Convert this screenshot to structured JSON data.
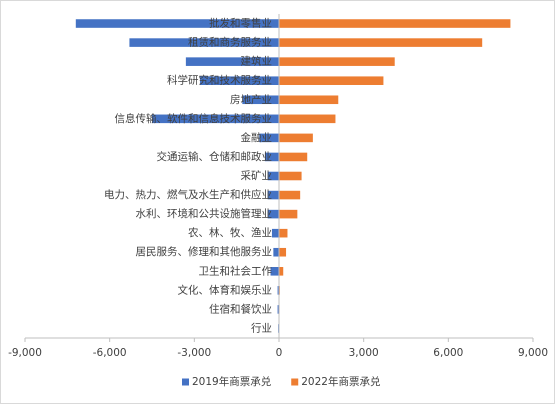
{
  "chart_data": {
    "type": "diverging-bar",
    "categories": [
      "批发和零售业",
      "租赁和商务服务业",
      "建筑业",
      "科学研究和技术服务业",
      "房地产业",
      "信息传输、软件和信息技术服务业",
      "金融业",
      "交通运输、仓储和邮政业",
      "采矿业",
      "电力、热力、燃气及水生产和供应业",
      "水利、环境和公共设施管理业",
      "农、林、牧、渔业",
      "居民服务、修理和其他服务业",
      "卫生和社会工作",
      "文化、体育和娱乐业",
      "住宿和餐饮业",
      "行业"
    ],
    "series": [
      {
        "name": "2019年商票承兑",
        "color": "#4472c4",
        "values": [
          -7200,
          -5300,
          -3300,
          -2800,
          -1300,
          -4500,
          -700,
          -500,
          -400,
          -400,
          -400,
          -250,
          -200,
          -300,
          -50,
          -50,
          -30
        ]
      },
      {
        "name": "2022年商票承兑",
        "color": "#ed7d31",
        "values": [
          8200,
          7200,
          4100,
          3700,
          2100,
          2000,
          1200,
          1000,
          800,
          750,
          650,
          300,
          250,
          150,
          30,
          20,
          10
        ]
      }
    ],
    "xlim": [
      -9000,
      9000
    ],
    "xticks": [
      {
        "value": -9000,
        "label": "-9,000"
      },
      {
        "value": -6000,
        "label": "-6,000"
      },
      {
        "value": -3000,
        "label": "-3,000"
      },
      0,
      {
        "value": 3000,
        "label": "3,000"
      },
      {
        "value": 6000,
        "label": "6,000"
      },
      {
        "value": 9000,
        "label": "9,000"
      }
    ],
    "legend": "bottom"
  }
}
